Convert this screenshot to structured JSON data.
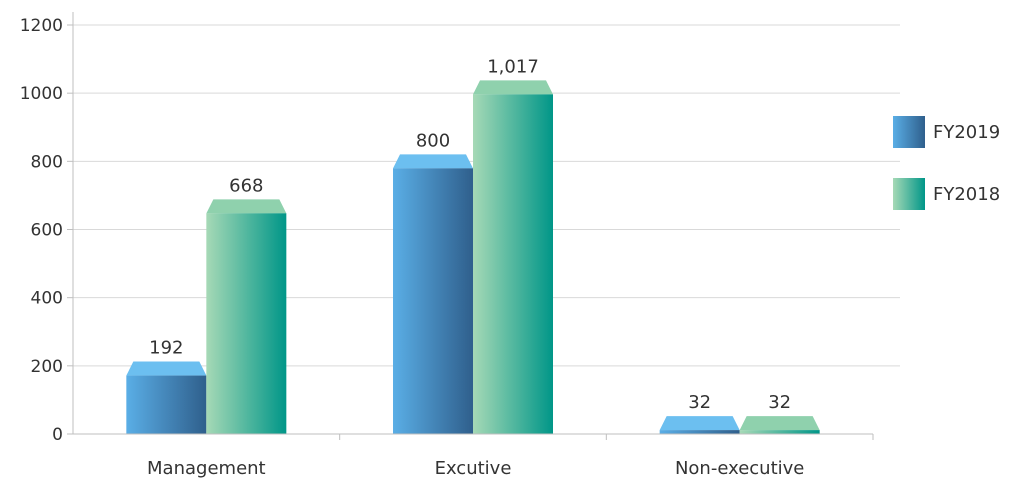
{
  "chart_data": {
    "type": "bar",
    "title": "",
    "xlabel": "",
    "ylabel": "",
    "categories": [
      "Management",
      "Excutive",
      "Non-executive"
    ],
    "series": [
      {
        "name": "FY2019",
        "values": [
          192,
          800,
          32
        ],
        "labels": [
          "192",
          "800",
          "32"
        ],
        "colors": [
          "#5aaee6",
          "#2f5f8c"
        ],
        "top_color": "#6cbff0"
      },
      {
        "name": "FY2018",
        "values": [
          668,
          1017,
          32
        ],
        "labels": [
          "668",
          "1,017",
          "32"
        ],
        "colors": [
          "#a6d9b6",
          "#009688"
        ],
        "top_color": "#8fd1ad"
      }
    ],
    "ylim": [
      0,
      1200
    ],
    "yticks": [
      0,
      200,
      400,
      600,
      800,
      1000,
      1200
    ],
    "grid": true,
    "legend": "right"
  }
}
